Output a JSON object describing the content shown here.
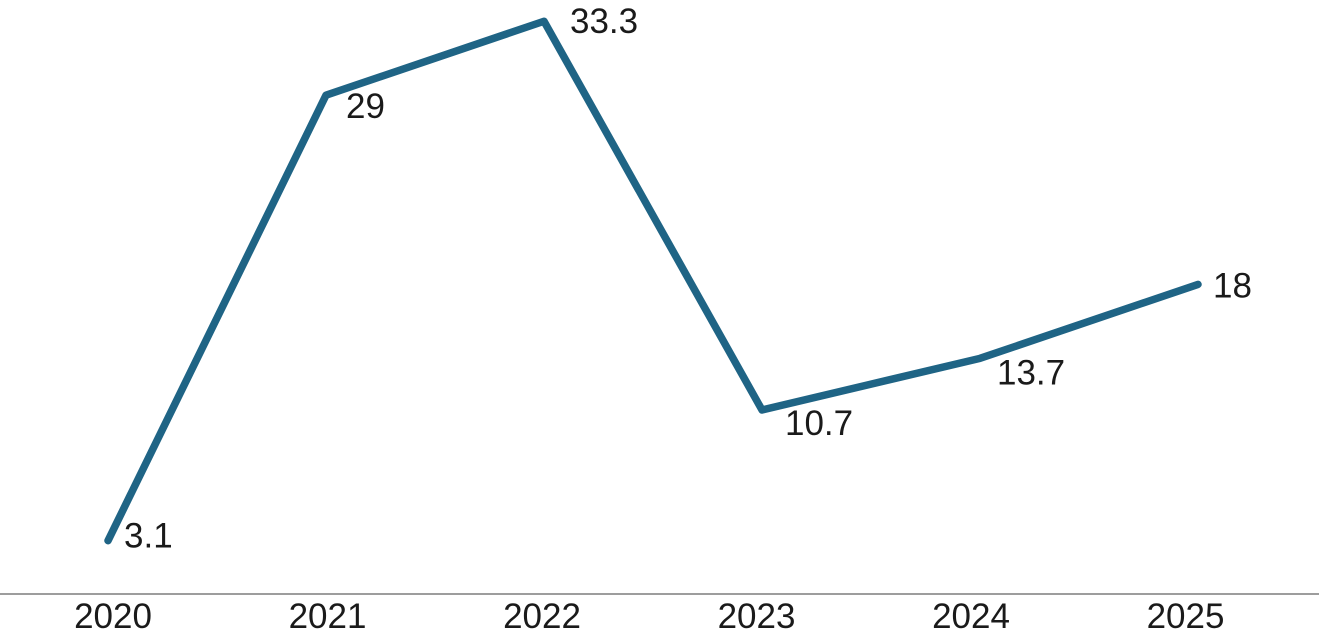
{
  "chart_data": {
    "type": "line",
    "title": "",
    "xlabel": "",
    "ylabel": "",
    "categories": [
      "2020",
      "2021",
      "2022",
      "2023",
      "2024",
      "2025"
    ],
    "values": [
      3.1,
      29,
      33.3,
      10.7,
      13.7,
      18
    ],
    "point_labels": [
      "3.1",
      "29",
      "33.3",
      "10.7",
      "13.7",
      "18"
    ],
    "ylim": [
      0,
      34.5
    ],
    "legend": "none",
    "grid": "off",
    "axes": "bottom-only",
    "colors": {
      "line": "#1F6485",
      "label_text": "#1A1A1A",
      "axis_line": "#9D9D9D",
      "background": "#FFFFFF"
    }
  }
}
